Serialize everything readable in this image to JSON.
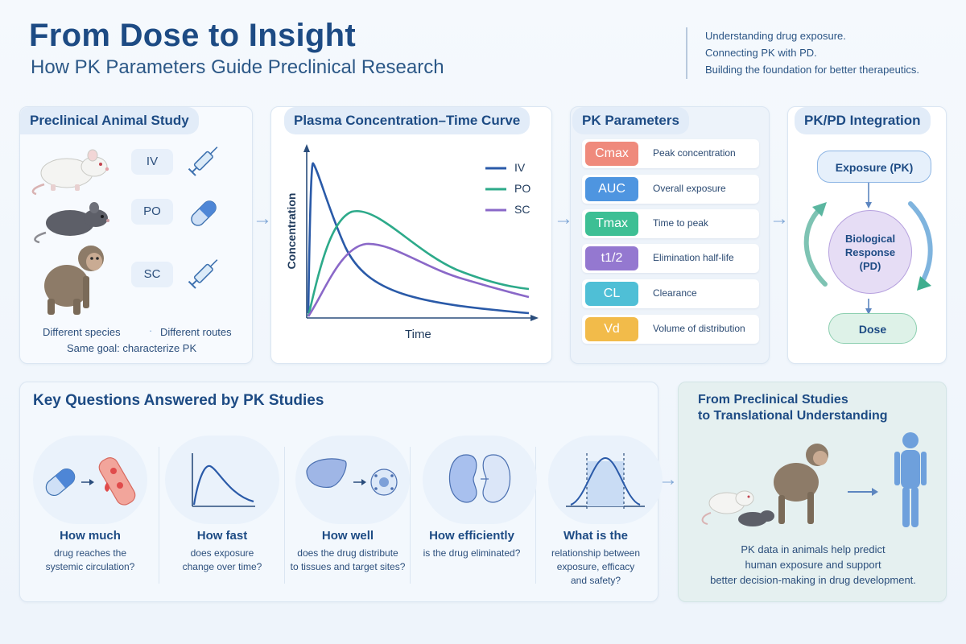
{
  "header": {
    "title": "From Dose to Insight",
    "subtitle": "How PK Parameters Guide Preclinical Research",
    "taglines": [
      "Understanding drug exposure.",
      "Connecting PK with PD.",
      "Building the foundation for better therapeutics."
    ]
  },
  "animal_study": {
    "title": "Preclinical Animal Study",
    "routes": [
      "IV",
      "PO",
      "SC"
    ],
    "note_species": "Different species",
    "note_routes": "Different routes",
    "goal": "Same goal: characterize PK"
  },
  "curve": {
    "title": "Plasma Concentration–Time Curve",
    "xlabel": "Time",
    "ylabel": "Concentration",
    "legend": [
      "IV",
      "PO",
      "SC"
    ],
    "colors": {
      "iv": "#2a5aa8",
      "po": "#2daa8a",
      "sc": "#8a68c8"
    }
  },
  "pk_params": {
    "title": "PK Parameters",
    "items": [
      {
        "abbr": "Cmax",
        "desc": "Peak concentration",
        "color": "#ef8a7c"
      },
      {
        "abbr": "AUC",
        "desc": "Overall exposure",
        "color": "#4e95e0"
      },
      {
        "abbr": "Tmax",
        "desc": "Time to peak",
        "color": "#3dbf94"
      },
      {
        "abbr": "t1/2",
        "desc": "Elimination half-life",
        "color": "#9478d0"
      },
      {
        "abbr": "CL",
        "desc": "Clearance",
        "color": "#4fbfd6"
      },
      {
        "abbr": "Vd",
        "desc": "Volume of distribution",
        "color": "#f2bb4a"
      }
    ]
  },
  "pkpd": {
    "title": "PK/PD Integration",
    "exposure": "Exposure (PK)",
    "response_line1": "Biological",
    "response_line2": "Response",
    "response_line3": "(PD)",
    "dose": "Dose"
  },
  "questions": {
    "title": "Key Questions Answered by PK Studies",
    "items": [
      {
        "title": "How much",
        "desc1": "drug reaches the",
        "desc2": "systemic circulation?",
        "desc3": ""
      },
      {
        "title": "How fast",
        "desc1": "does exposure",
        "desc2": "change over time?",
        "desc3": ""
      },
      {
        "title": "How well",
        "desc1": "does the drug distribute",
        "desc2": "to tissues and target sites?",
        "desc3": ""
      },
      {
        "title": "How efficiently",
        "desc1": "is the drug eliminated?",
        "desc2": "",
        "desc3": ""
      },
      {
        "title": "What is the",
        "desc1": "relationship between",
        "desc2": "exposure, efficacy",
        "desc3": "and safety?"
      }
    ]
  },
  "translational": {
    "title_line1": "From Preclinical Studies",
    "title_line2": "to Translational Understanding",
    "text_line1": "PK data in animals help predict",
    "text_line2": "human exposure and support",
    "text_line3": "better decision-making in drug development."
  }
}
